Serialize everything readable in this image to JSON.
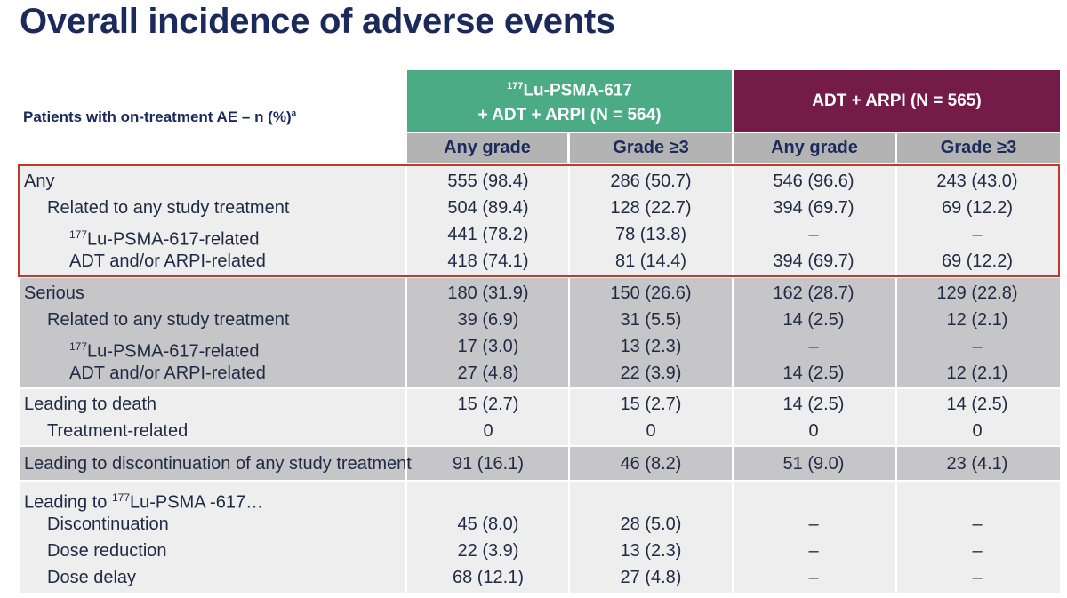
{
  "title": "Overall incidence of adverse events",
  "header": {
    "row_label": "Patients with on-treatment AE – n (%)",
    "row_label_sup": "a",
    "group_a": {
      "sup": "177",
      "line1": "Lu-PSMA-617",
      "line2": "+ ADT + ARPI (N = 564)"
    },
    "group_b": "ADT + ARPI (N = 565)",
    "sub": [
      "Any grade",
      "Grade ≥3",
      "Any grade",
      "Grade ≥3"
    ]
  },
  "colors": {
    "group_a": "#4bab85",
    "group_b": "#741b48",
    "title": "#1b2a5a",
    "highlight_border": "#c0392b"
  },
  "blocks": [
    {
      "rows": [
        {
          "label": "Any",
          "values": [
            "555 (98.4)",
            "286 (50.7)",
            "546 (96.6)",
            "243 (43.0)"
          ]
        },
        {
          "label": "Related to any study treatment",
          "values": [
            "504 (89.4)",
            "128 (22.7)",
            "394 (69.7)",
            "69 (12.2)"
          ]
        },
        {
          "label_sup": "177",
          "label": "Lu-PSMA-617-related",
          "values": [
            "441 (78.2)",
            "78 (13.8)",
            "–",
            "–"
          ]
        },
        {
          "label": "ADT and/or ARPI-related",
          "values": [
            "418 (74.1)",
            "81 (14.4)",
            "394 (69.7)",
            "69 (12.2)"
          ]
        }
      ]
    },
    {
      "rows": [
        {
          "label": "Serious",
          "values": [
            "180 (31.9)",
            "150 (26.6)",
            "162 (28.7)",
            "129 (22.8)"
          ]
        },
        {
          "label": "Related to any study treatment",
          "values": [
            "39 (6.9)",
            "31 (5.5)",
            "14 (2.5)",
            "12 (2.1)"
          ]
        },
        {
          "label_sup": "177",
          "label": "Lu-PSMA-617-related",
          "values": [
            "17 (3.0)",
            "13 (2.3)",
            "–",
            "–"
          ]
        },
        {
          "label": "ADT and/or ARPI-related",
          "values": [
            "27 (4.8)",
            "22 (3.9)",
            "14 (2.5)",
            "12 (2.1)"
          ]
        }
      ]
    },
    {
      "rows": [
        {
          "label": "Leading to death",
          "values": [
            "15 (2.7)",
            "15 (2.7)",
            "14 (2.5)",
            "14 (2.5)"
          ]
        },
        {
          "label": "Treatment-related",
          "values": [
            "0",
            "0",
            "0",
            "0"
          ]
        }
      ]
    },
    {
      "rows": [
        {
          "label": "Leading to discontinuation of any study treatment",
          "values": [
            "91 (16.1)",
            "46 (8.2)",
            "51 (9.0)",
            "23 (4.1)"
          ]
        }
      ]
    },
    {
      "rows": [
        {
          "label_pre": "Leading to ",
          "label_sup": "177",
          "label": "Lu-PSMA -617…"
        },
        {
          "label": "Discontinuation",
          "values": [
            "45 (8.0)",
            "28 (5.0)",
            "–",
            "–"
          ]
        },
        {
          "label": "Dose reduction",
          "values": [
            "22 (3.9)",
            "13 (2.3)",
            "–",
            "–"
          ]
        },
        {
          "label": "Dose delay",
          "values": [
            "68 (12.1)",
            "27 (4.8)",
            "–",
            "–"
          ]
        }
      ]
    }
  ]
}
